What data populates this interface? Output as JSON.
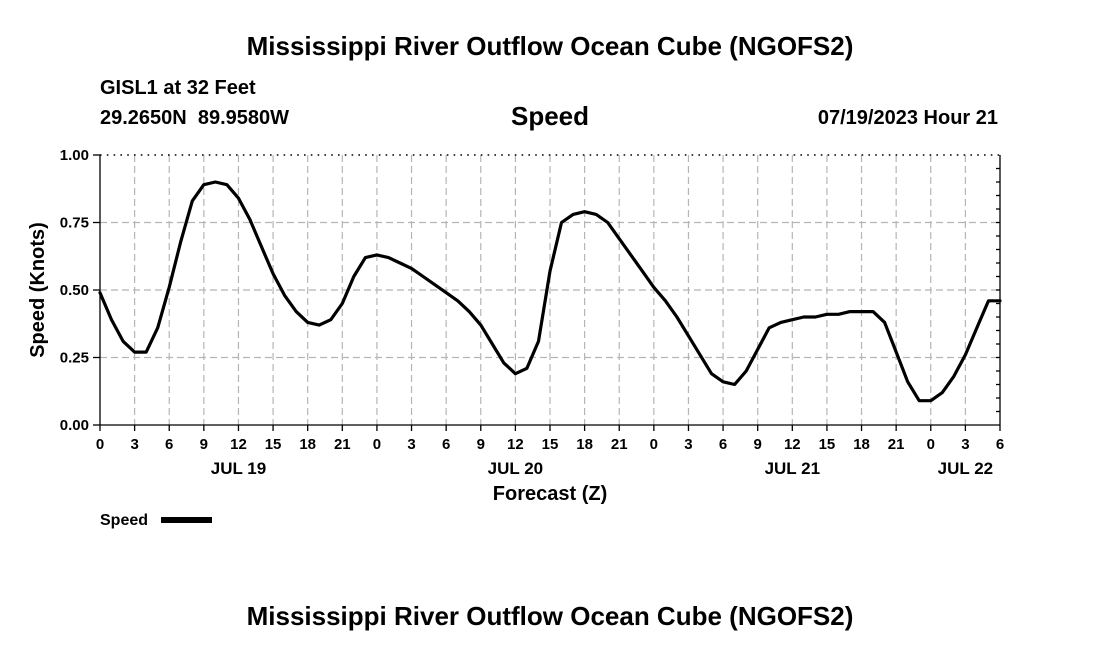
{
  "header": {
    "title": "Mississippi River Outflow Ocean Cube (NGOFS2)",
    "station_name": "GISL1 at 32 Feet",
    "station_coords": "29.2650N  89.9580W",
    "subtitle": "Speed",
    "timestamp": "07/19/2023 Hour 21"
  },
  "footer": {
    "title": "Mississippi River Outflow Ocean Cube (NGOFS2)"
  },
  "colors": {
    "series": "#000000",
    "grid": "#b5b5b5",
    "background": "#ffffff"
  },
  "chart_data": {
    "type": "line",
    "title": "Speed",
    "xlabel": "Forecast (Z)",
    "ylabel": "Speed (Knots)",
    "ylim": [
      0,
      1
    ],
    "xlim": [
      0,
      78
    ],
    "x_unit": "hours since JUL 19 00Z",
    "y_ticks": [
      0,
      0.25,
      0.5,
      0.75,
      1
    ],
    "y_tick_labels": [
      "0.00",
      "0.25",
      "0.50",
      "0.75",
      "1.00"
    ],
    "x_ticks": [
      0,
      3,
      6,
      9,
      12,
      15,
      18,
      21,
      24,
      27,
      30,
      33,
      36,
      39,
      42,
      45,
      48,
      51,
      54,
      57,
      60,
      63,
      66,
      69,
      72,
      75,
      78
    ],
    "x_tick_labels": [
      "0",
      "3",
      "6",
      "9",
      "12",
      "15",
      "18",
      "21",
      "0",
      "3",
      "6",
      "9",
      "12",
      "15",
      "18",
      "21",
      "0",
      "3",
      "6",
      "9",
      "12",
      "15",
      "18",
      "21",
      "0",
      "3",
      "6"
    ],
    "day_labels": [
      {
        "label": "JUL 19",
        "x": 12
      },
      {
        "label": "JUL 20",
        "x": 36
      },
      {
        "label": "JUL 21",
        "x": 60
      },
      {
        "label": "JUL 22",
        "x": 75
      }
    ],
    "grid": true,
    "legend": [
      {
        "label": "Speed",
        "position": "bottom-left"
      }
    ],
    "series": [
      {
        "name": "Speed",
        "x": [
          0,
          1,
          2,
          3,
          4,
          5,
          6,
          7,
          8,
          9,
          10,
          11,
          12,
          13,
          14,
          15,
          16,
          17,
          18,
          19,
          20,
          21,
          22,
          23,
          24,
          25,
          26,
          27,
          28,
          29,
          30,
          31,
          32,
          33,
          34,
          35,
          36,
          37,
          38,
          39,
          40,
          41,
          42,
          43,
          44,
          45,
          46,
          47,
          48,
          49,
          50,
          51,
          52,
          53,
          54,
          55,
          56,
          57,
          58,
          59,
          60,
          61,
          62,
          63,
          64,
          65,
          66,
          67,
          68,
          69,
          70,
          71,
          72,
          73,
          74,
          75,
          76,
          77,
          78
        ],
        "values": [
          0.49,
          0.39,
          0.31,
          0.27,
          0.27,
          0.36,
          0.51,
          0.68,
          0.83,
          0.89,
          0.9,
          0.89,
          0.84,
          0.76,
          0.66,
          0.56,
          0.48,
          0.42,
          0.38,
          0.37,
          0.39,
          0.45,
          0.55,
          0.62,
          0.63,
          0.62,
          0.6,
          0.58,
          0.55,
          0.52,
          0.49,
          0.46,
          0.42,
          0.37,
          0.3,
          0.23,
          0.19,
          0.21,
          0.31,
          0.57,
          0.75,
          0.78,
          0.79,
          0.78,
          0.75,
          0.69,
          0.63,
          0.57,
          0.51,
          0.46,
          0.4,
          0.33,
          0.26,
          0.19,
          0.16,
          0.15,
          0.2,
          0.28,
          0.36,
          0.38,
          0.39,
          0.4,
          0.4,
          0.41,
          0.41,
          0.42,
          0.42,
          0.42,
          0.38,
          0.27,
          0.16,
          0.09,
          0.09,
          0.12,
          0.18,
          0.26,
          0.36,
          0.46,
          0.46
        ]
      }
    ]
  }
}
